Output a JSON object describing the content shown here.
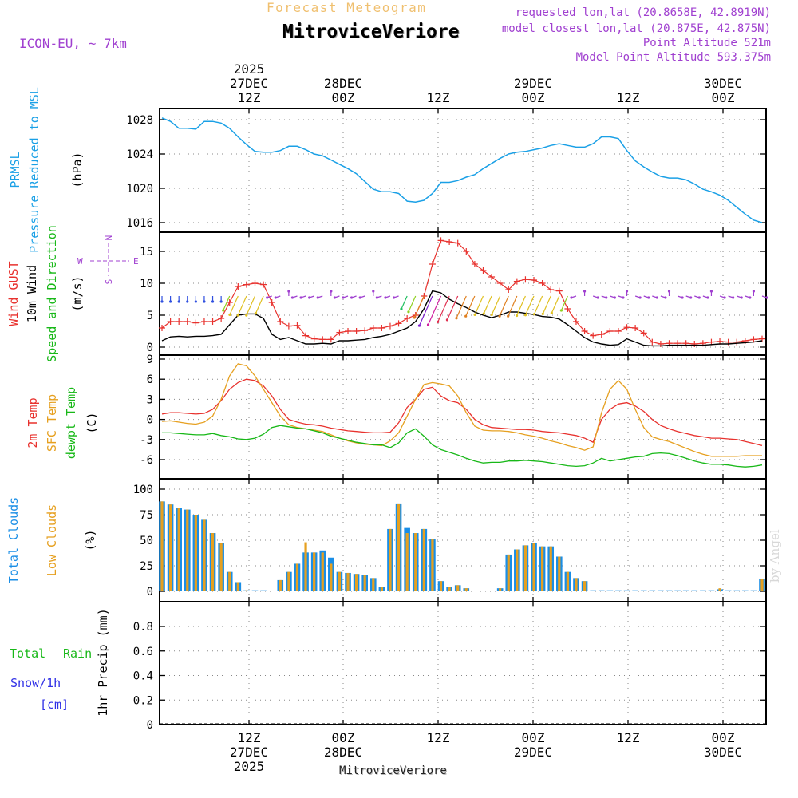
{
  "header": {
    "subtitle": "Forecast Meteogram",
    "title": "MitroviceVeriore",
    "model": "ICON-EU, ~ 7km",
    "requested": "requested lon,lat (20.8658E, 42.8919N)",
    "closest": "model closest lon,lat (20.875E, 42.875N)",
    "point_alt": "Point Altitude 521m",
    "model_alt": "Model Point Altitude 593.375m",
    "footer": "MitroviceVeriore",
    "credit": "by Angel"
  },
  "colors": {
    "pressure": "#1aa0e6",
    "gust": "#e8322e",
    "wind": "#000000",
    "temp": "#e8322e",
    "sfc": "#e6a020",
    "dewpt": "#18b818",
    "total": "#1a8ee6",
    "low": "#e6a020",
    "rain": "#18b818",
    "snow": "#3030e6",
    "purple": "#a040d0"
  },
  "top_axis": [
    {
      "l1": "2025",
      "l2": "27DEC",
      "l3": "12Z"
    },
    {
      "l1": "",
      "l2": "28DEC",
      "l3": "00Z"
    },
    {
      "l1": "",
      "l2": "",
      "l3": "12Z"
    },
    {
      "l1": "",
      "l2": "29DEC",
      "l3": "00Z"
    },
    {
      "l1": "",
      "l2": "",
      "l3": "12Z"
    },
    {
      "l1": "",
      "l2": "30DEC",
      "l3": "00Z"
    }
  ],
  "bottom_axis": [
    {
      "l1": "12Z",
      "l2": "27DEC",
      "l3": "2025"
    },
    {
      "l1": "00Z",
      "l2": "28DEC",
      "l3": ""
    },
    {
      "l1": "12Z",
      "l2": "",
      "l3": ""
    },
    {
      "l1": "00Z",
      "l2": "29DEC",
      "l3": ""
    },
    {
      "l1": "12Z",
      "l2": "",
      "l3": ""
    },
    {
      "l1": "00Z",
      "l2": "30DEC",
      "l3": ""
    }
  ],
  "chart_data": [
    {
      "type": "line",
      "name": "pressure",
      "ylabels": [
        "PRMSL",
        "Pressure Reduced to MSL"
      ],
      "unit": "(hPa)",
      "ylim": [
        1014.5,
        1029
      ],
      "yticks": [
        1016,
        1020,
        1024,
        1028
      ],
      "series": [
        {
          "name": "PRMSL",
          "values": [
            1028.2,
            1027.8,
            1027.0,
            1027.0,
            1026.9,
            1027.8,
            1027.8,
            1027.6,
            1027.0,
            1026.0,
            1025.1,
            1024.3,
            1024.2,
            1024.2,
            1024.4,
            1024.9,
            1024.9,
            1024.5,
            1024.0,
            1023.8,
            1023.3,
            1022.8,
            1022.3,
            1021.7,
            1020.8,
            1019.9,
            1019.6,
            1019.6,
            1019.4,
            1018.5,
            1018.4,
            1018.6,
            1019.4,
            1020.7,
            1020.7,
            1020.9,
            1021.3,
            1021.6,
            1022.3,
            1022.9,
            1023.5,
            1024.0,
            1024.2,
            1024.3,
            1024.5,
            1024.7,
            1025.0,
            1025.2,
            1025.0,
            1024.8,
            1024.8,
            1025.2,
            1026.0,
            1026.0,
            1025.8,
            1024.4,
            1023.2,
            1022.5,
            1021.9,
            1021.4,
            1021.2,
            1021.2,
            1021.0,
            1020.5,
            1019.9,
            1019.6,
            1019.2,
            1018.6,
            1017.8,
            1017.0,
            1016.3,
            1016.0
          ]
        }
      ]
    },
    {
      "type": "line",
      "name": "wind",
      "ylabels": [
        "Wind GUST",
        "10m Wind",
        "Speed and Direction"
      ],
      "unit": "(m/s)",
      "compass": {
        "n": "N",
        "s": "S",
        "w": "W",
        "e": "E"
      },
      "ylim": [
        -0.5,
        18
      ],
      "yticks": [
        0,
        5,
        10,
        15
      ],
      "series": [
        {
          "name": "Wind GUST",
          "values": [
            3.0,
            4.0,
            4.0,
            4.0,
            3.8,
            4.0,
            4.0,
            4.5,
            7.0,
            9.5,
            9.8,
            10.0,
            9.8,
            7.0,
            4.0,
            3.3,
            3.4,
            1.8,
            1.3,
            1.2,
            1.2,
            2.3,
            2.5,
            2.5,
            2.6,
            3.0,
            3.0,
            3.3,
            3.7,
            4.5,
            5.0,
            8.0,
            13.0,
            16.7,
            16.5,
            16.3,
            15.0,
            13.0,
            12.0,
            11.0,
            10.0,
            9.0,
            10.3,
            10.6,
            10.5,
            10.0,
            9.0,
            8.8,
            6.0,
            4.0,
            2.5,
            1.8,
            2.0,
            2.5,
            2.5,
            3.1,
            3.0,
            2.2,
            0.8,
            0.5,
            0.6,
            0.6,
            0.6,
            0.5,
            0.6,
            0.8,
            0.9,
            0.8,
            0.8,
            1.0,
            1.2,
            1.3
          ]
        },
        {
          "name": "10m Wind",
          "values": [
            1.0,
            1.6,
            1.7,
            1.6,
            1.7,
            1.7,
            1.8,
            2.0,
            3.5,
            5.0,
            5.2,
            5.2,
            4.5,
            2.0,
            1.2,
            1.5,
            1.0,
            0.5,
            0.5,
            0.6,
            0.5,
            1.0,
            1.0,
            1.1,
            1.2,
            1.5,
            1.7,
            2.0,
            2.5,
            3.0,
            4.0,
            6.0,
            8.8,
            8.5,
            7.5,
            6.8,
            6.2,
            5.5,
            5.0,
            4.6,
            5.0,
            5.5,
            5.5,
            5.3,
            5.1,
            4.8,
            4.7,
            4.4,
            3.5,
            2.5,
            1.5,
            0.8,
            0.5,
            0.3,
            0.4,
            1.3,
            0.8,
            0.3,
            0.2,
            0.2,
            0.3,
            0.3,
            0.3,
            0.3,
            0.3,
            0.4,
            0.5,
            0.5,
            0.6,
            0.7,
            0.8,
            1.0
          ]
        }
      ]
    },
    {
      "type": "line",
      "name": "temperature",
      "ylabels": [
        "2m Temp",
        "SFC Temp",
        "dewpt Temp"
      ],
      "unit": "(C)",
      "ylim": [
        -7.5,
        9.2
      ],
      "yticks": [
        -6,
        -3,
        0,
        3,
        6,
        9
      ],
      "series": [
        {
          "name": "2m Temp",
          "values": [
            0.8,
            1.0,
            1.0,
            0.9,
            0.8,
            0.9,
            1.5,
            2.8,
            4.5,
            5.5,
            6.0,
            5.8,
            5.0,
            3.5,
            1.5,
            0.0,
            -0.4,
            -0.7,
            -0.8,
            -1.0,
            -1.3,
            -1.5,
            -1.7,
            -1.8,
            -1.9,
            -2.0,
            -2.0,
            -1.9,
            -0.5,
            1.8,
            3.0,
            4.5,
            4.8,
            3.5,
            2.8,
            2.5,
            1.5,
            0.0,
            -0.8,
            -1.2,
            -1.3,
            -1.4,
            -1.5,
            -1.5,
            -1.6,
            -1.8,
            -1.9,
            -2.0,
            -2.2,
            -2.4,
            -2.8,
            -3.4,
            0.0,
            1.5,
            2.3,
            2.5,
            2.0,
            1.2,
            0.0,
            -0.9,
            -1.4,
            -1.8,
            -2.1,
            -2.4,
            -2.6,
            -2.8,
            -2.8,
            -2.9,
            -3.0,
            -3.3,
            -3.6,
            -3.9
          ]
        },
        {
          "name": "SFC Temp",
          "values": [
            -0.3,
            -0.2,
            -0.4,
            -0.6,
            -0.7,
            -0.4,
            0.5,
            3.0,
            6.5,
            8.3,
            8.0,
            6.5,
            4.5,
            2.5,
            0.5,
            -0.8,
            -1.2,
            -1.4,
            -1.6,
            -1.8,
            -2.3,
            -2.8,
            -3.2,
            -3.5,
            -3.7,
            -3.8,
            -3.9,
            -3.2,
            -2.0,
            0.5,
            3.0,
            5.2,
            5.5,
            5.3,
            5.0,
            3.5,
            1.0,
            -1.0,
            -1.6,
            -1.7,
            -1.7,
            -1.8,
            -2.0,
            -2.3,
            -2.5,
            -2.8,
            -3.2,
            -3.5,
            -3.9,
            -4.2,
            -4.6,
            -4.1,
            1.0,
            4.5,
            5.8,
            4.5,
            1.5,
            -1.2,
            -2.6,
            -3.0,
            -3.3,
            -3.8,
            -4.3,
            -4.8,
            -5.2,
            -5.5,
            -5.5,
            -5.5,
            -5.5,
            -5.4,
            -5.4,
            -5.4
          ]
        },
        {
          "name": "dewpt Temp",
          "values": [
            -2.0,
            -2.0,
            -2.1,
            -2.2,
            -2.3,
            -2.3,
            -2.1,
            -2.4,
            -2.6,
            -2.9,
            -3.0,
            -2.8,
            -2.2,
            -1.2,
            -0.9,
            -1.1,
            -1.3,
            -1.4,
            -1.7,
            -2.0,
            -2.5,
            -2.8,
            -3.1,
            -3.4,
            -3.6,
            -3.8,
            -3.8,
            -4.2,
            -3.5,
            -2.0,
            -1.4,
            -2.5,
            -3.8,
            -4.5,
            -4.9,
            -5.3,
            -5.8,
            -6.2,
            -6.5,
            -6.4,
            -6.4,
            -6.2,
            -6.2,
            -6.1,
            -6.2,
            -6.3,
            -6.5,
            -6.7,
            -6.9,
            -7.0,
            -6.9,
            -6.5,
            -5.8,
            -6.2,
            -6.0,
            -5.8,
            -5.6,
            -5.5,
            -5.1,
            -5.0,
            -5.1,
            -5.4,
            -5.8,
            -6.2,
            -6.5,
            -6.7,
            -6.7,
            -6.8,
            -7.0,
            -7.1,
            -7.0,
            -6.8
          ]
        }
      ]
    },
    {
      "type": "bar",
      "name": "clouds",
      "ylabels": [
        "Total Clouds",
        "Low Clouds"
      ],
      "unit": "(%)",
      "ylim": [
        -3,
        103
      ],
      "yticks": [
        0,
        25,
        50,
        75,
        100
      ],
      "series": [
        {
          "name": "Total Clouds",
          "values": [
            88,
            85,
            82,
            80,
            75,
            70,
            57,
            47,
            19,
            9,
            1,
            1,
            1,
            0,
            11,
            19,
            27,
            38,
            38,
            40,
            33,
            19,
            18,
            17,
            16,
            13,
            4,
            61,
            86,
            62,
            57,
            61,
            51,
            10,
            4,
            6,
            3,
            0,
            0,
            0,
            3,
            36,
            41,
            45,
            47,
            44,
            44,
            34,
            19,
            13,
            10,
            1,
            1,
            1,
            1,
            1,
            1,
            1,
            1,
            1,
            1,
            1,
            1,
            1,
            1,
            1,
            2,
            1,
            1,
            1,
            1,
            12
          ]
        },
        {
          "name": "Low Clouds",
          "values": [
            88,
            85,
            82,
            80,
            75,
            70,
            57,
            47,
            19,
            9,
            1,
            0,
            0,
            0,
            11,
            19,
            27,
            48,
            38,
            38,
            27,
            19,
            18,
            17,
            16,
            13,
            4,
            61,
            86,
            57,
            57,
            61,
            51,
            10,
            4,
            6,
            3,
            0,
            0,
            0,
            3,
            36,
            41,
            45,
            47,
            44,
            44,
            34,
            19,
            13,
            10,
            0,
            0,
            0,
            0,
            0,
            0,
            0,
            0,
            0,
            0,
            0,
            0,
            0,
            0,
            0,
            3,
            0,
            0,
            0,
            0,
            12
          ]
        }
      ]
    },
    {
      "type": "bar",
      "name": "precip",
      "ylabels": [
        "Total",
        "Rain",
        "Snow/1h",
        "[cm]"
      ],
      "unit": "1hr Precip (mm)",
      "ylim": [
        0,
        1
      ],
      "yticks": [
        "0",
        "0.2",
        "0.4",
        "0.6",
        "0.8"
      ],
      "series": [
        {
          "name": "Total",
          "values": []
        }
      ]
    }
  ]
}
